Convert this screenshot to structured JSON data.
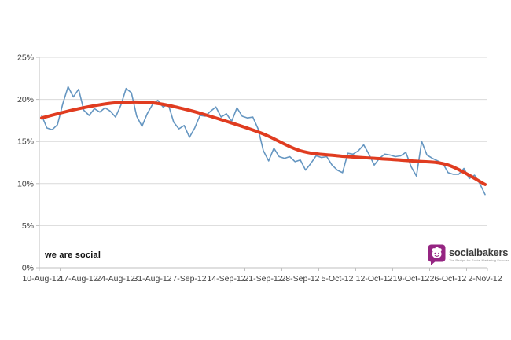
{
  "page": {
    "background": "#ffffff"
  },
  "branding": {
    "we_are_social": "we are social",
    "socialbakers": {
      "name": "socialbakers",
      "tagline": "The Recipe for Social Marketing Success",
      "brand_color": "#952582",
      "text_color": "#3b3b3b"
    }
  },
  "chart_data": {
    "type": "line",
    "title": "",
    "xlabel": "",
    "ylabel": "",
    "ylim": [
      0,
      25
    ],
    "grid": "horizontal",
    "legend": "none",
    "colors": {
      "gridline": "#d9d9d9",
      "axis": "#bfbfbf",
      "tick_text": "#404040"
    },
    "y_tick_labels": [
      "0%",
      "5%",
      "10%",
      "15%",
      "20%",
      "25%"
    ],
    "y_tick_values": [
      0,
      5,
      10,
      15,
      20,
      25
    ],
    "x_tick_labels": [
      "10-Aug-12",
      "17-Aug-12",
      "24-Aug-12",
      "31-Aug-12",
      "7-Sep-12",
      "14-Sep-12",
      "21-Sep-12",
      "28-Sep-12",
      "5-Oct-12",
      "12-Oct-12",
      "19-Oct-12",
      "26-Oct-12",
      "2-Nov-12"
    ],
    "points_per_tick": 7,
    "series": [
      {
        "name": "daily_engagement_rate",
        "color": "#6596C1",
        "width": 1.6,
        "smooth": false,
        "values": [
          18.1,
          16.6,
          16.4,
          17.0,
          19.5,
          21.5,
          20.3,
          21.2,
          18.7,
          18.1,
          18.9,
          18.5,
          19.0,
          18.6,
          17.9,
          19.3,
          21.3,
          20.8,
          18.0,
          16.8,
          18.3,
          19.4,
          19.9,
          19.1,
          19.4,
          17.3,
          16.5,
          16.9,
          15.5,
          16.6,
          18.1,
          18.0,
          18.6,
          19.1,
          17.9,
          18.3,
          17.4,
          19.0,
          18.0,
          17.8,
          17.9,
          16.5,
          13.9,
          12.7,
          14.2,
          13.2,
          13.0,
          13.2,
          12.6,
          12.8,
          11.6,
          12.4,
          13.3,
          13.1,
          13.2,
          12.2,
          11.6,
          11.3,
          13.6,
          13.5,
          13.9,
          14.6,
          13.5,
          12.2,
          13.0,
          13.5,
          13.4,
          13.2,
          13.3,
          13.7,
          12.0,
          10.9,
          15.0,
          13.4,
          13.0,
          12.7,
          12.4,
          11.3,
          11.1,
          11.1,
          11.8,
          10.6,
          11.0,
          10.0,
          8.7
        ]
      },
      {
        "name": "smoothed_trend",
        "color": "#E03C20",
        "width": 4,
        "smooth": true,
        "anchor_values": [
          17.8,
          18.9,
          19.6,
          19.6,
          18.7,
          17.4,
          15.9,
          13.9,
          13.3,
          13.0,
          12.7,
          12.2,
          9.9
        ]
      }
    ]
  }
}
